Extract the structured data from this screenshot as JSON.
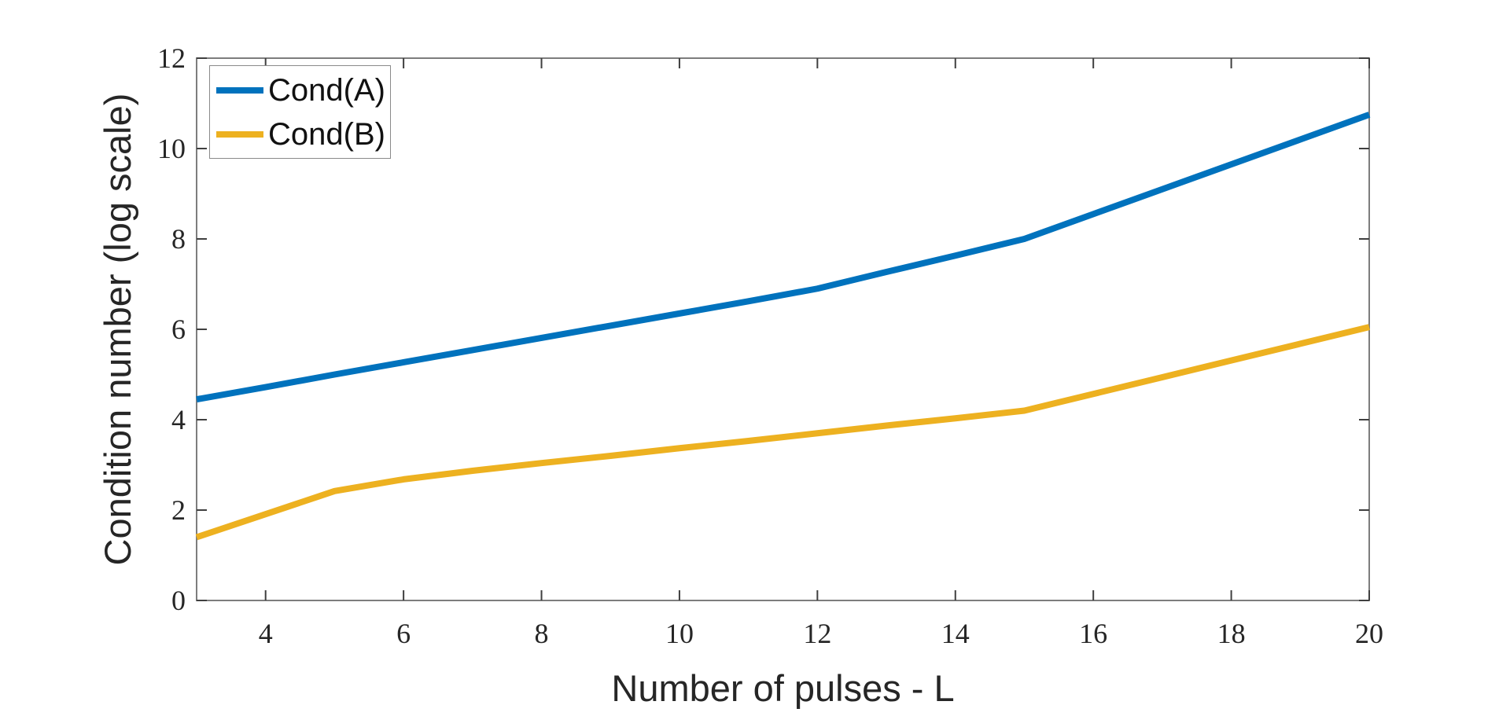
{
  "figure": {
    "background": "#ffffff",
    "colors": {
      "axis_box": "#7d7d7d",
      "tick_mark": "#3f3f3f",
      "text": "#262626",
      "legend_border": "#8a8a8a"
    }
  },
  "chart_data": {
    "type": "line",
    "title": "",
    "xlabel": "Number of pulses - L",
    "ylabel": "Condition number (log scale)",
    "xlim": [
      3,
      20
    ],
    "ylim": [
      0,
      12
    ],
    "xticks": [
      4,
      6,
      8,
      10,
      12,
      14,
      16,
      18,
      20
    ],
    "yticks": [
      0,
      2,
      4,
      6,
      8,
      10,
      12
    ],
    "grid": false,
    "legend_position": "top-left",
    "x": [
      3,
      4,
      5,
      6,
      7,
      8,
      9,
      10,
      11,
      12,
      13,
      14,
      15,
      16,
      17,
      18,
      19,
      20
    ],
    "series": [
      {
        "name": "Cond(A)",
        "color": "#0072BD",
        "values": [
          4.45,
          4.72,
          5.0,
          5.27,
          5.54,
          5.81,
          6.08,
          6.35,
          6.62,
          6.9,
          7.27,
          7.63,
          8.0,
          8.55,
          9.1,
          9.65,
          10.2,
          10.75
        ]
      },
      {
        "name": "Cond(B)",
        "color": "#EDB120",
        "values": [
          1.4,
          1.91,
          2.42,
          2.68,
          2.87,
          3.04,
          3.2,
          3.37,
          3.53,
          3.7,
          3.87,
          4.03,
          4.2,
          4.57,
          4.94,
          5.31,
          5.68,
          6.05
        ]
      }
    ]
  }
}
